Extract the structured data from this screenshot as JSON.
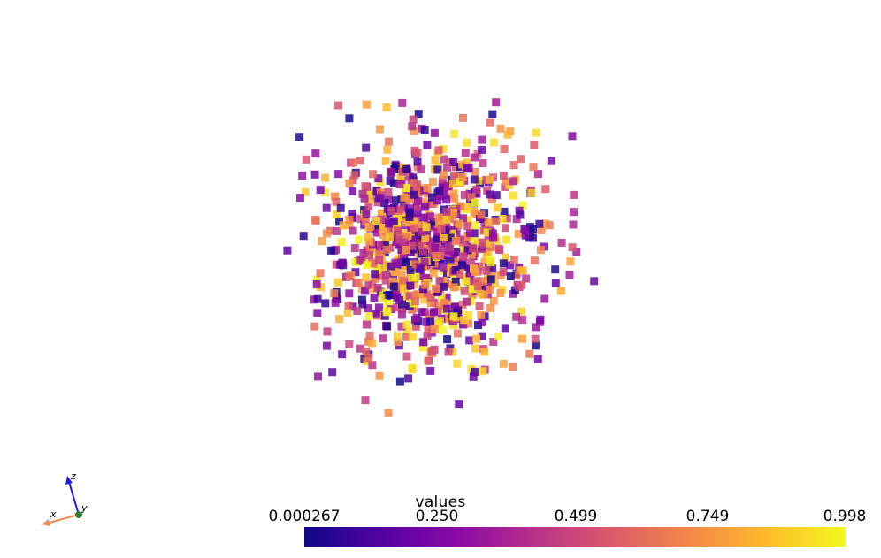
{
  "scalar_bar": {
    "title": "values",
    "ticks": [
      "0.000267",
      "0.250",
      "0.499",
      "0.749",
      "0.998"
    ],
    "colormap": "plasma",
    "range": [
      0.000267,
      0.998
    ]
  },
  "axes_widget": {
    "x_label": "x",
    "y_label": "y",
    "z_label": "z",
    "x_color": "#f0885a",
    "y_color": "#2e7d32",
    "z_color": "#1a1ae6"
  },
  "point_cloud": {
    "point_count": 1000,
    "point_style": "square",
    "seed": 7
  },
  "colors": {
    "background": "#ffffff",
    "plasma_stops": [
      "#0d0887",
      "#5402a3",
      "#8b0aa5",
      "#b93289",
      "#db5c68",
      "#f48849",
      "#febc2a",
      "#f0f921"
    ]
  }
}
